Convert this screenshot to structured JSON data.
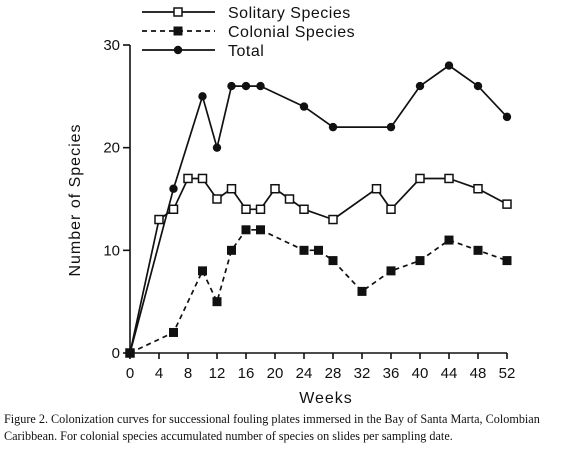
{
  "caption": "Figure 2. Colonization curves for successional fouling plates immersed in the Bay of Santa Marta, Colombian Caribbean. For colonial species accumulated number of species on slides per sampling date.",
  "chart_data": {
    "type": "line",
    "xlabel": "Weeks",
    "ylabel": "Number of Species",
    "xlim": [
      0,
      52
    ],
    "ylim": [
      0,
      30
    ],
    "x_ticks": [
      0,
      4,
      8,
      12,
      16,
      20,
      24,
      28,
      32,
      36,
      40,
      44,
      48,
      52
    ],
    "y_ticks": [
      0,
      10,
      20,
      30
    ],
    "legend_position": "top",
    "series": [
      {
        "name": "Solitary Species",
        "marker": "open-square",
        "line_style": "solid",
        "x": [
          0,
          4,
          6,
          8,
          10,
          12,
          14,
          16,
          18,
          20,
          22,
          24,
          28,
          34,
          36,
          40,
          44,
          48,
          52
        ],
        "y": [
          0,
          13,
          14,
          17,
          17,
          15,
          16,
          14,
          14,
          16,
          15,
          14,
          13,
          16,
          14,
          17,
          17,
          16,
          14.5
        ]
      },
      {
        "name": "Colonial Species",
        "marker": "filled-square",
        "line_style": "dashed",
        "x": [
          0,
          6,
          10,
          12,
          14,
          16,
          18,
          24,
          26,
          28,
          32,
          36,
          40,
          44,
          48,
          52
        ],
        "y": [
          0,
          2,
          8,
          5,
          10,
          12,
          12,
          10,
          10,
          9,
          6,
          8,
          9,
          11,
          10,
          9
        ]
      },
      {
        "name": "Total",
        "marker": "filled-circle",
        "line_style": "solid",
        "x": [
          0,
          6,
          10,
          12,
          14,
          16,
          18,
          24,
          28,
          36,
          40,
          44,
          48,
          52
        ],
        "y": [
          0,
          16,
          25,
          20,
          26,
          26,
          26,
          24,
          22,
          22,
          26,
          28,
          26,
          23
        ]
      }
    ]
  }
}
